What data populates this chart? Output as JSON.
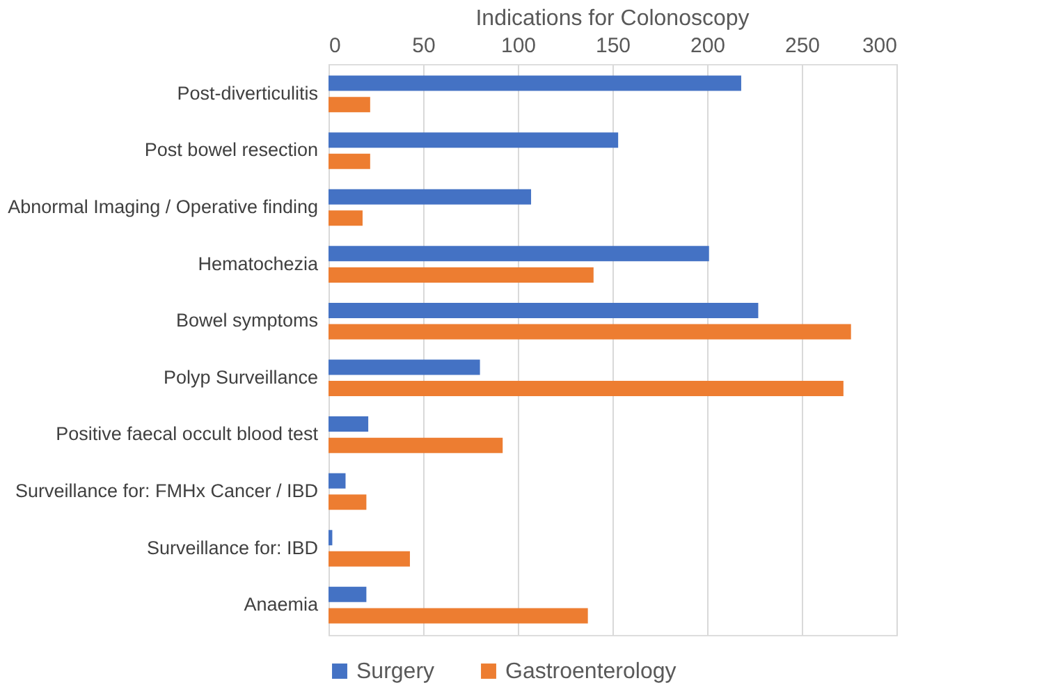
{
  "chart_data": {
    "type": "bar",
    "orientation": "horizontal",
    "title": "Indications for Colonoscopy",
    "categories": [
      "Post-diverticulitis",
      "Post bowel resection",
      "Abnormal Imaging / Operative finding",
      "Hematochezia",
      "Bowel symptoms",
      "Polyp Surveillance",
      "Positive faecal occult blood test",
      "Surveillance for: FMHx Cancer / IBD",
      "Surveillance for: IBD",
      "Anaemia"
    ],
    "series": [
      {
        "name": "Surgery",
        "color": "#4472c4",
        "values": [
          218,
          153,
          107,
          201,
          227,
          80,
          21,
          9,
          2,
          20
        ]
      },
      {
        "name": "Gastroenterology",
        "color": "#ed7d31",
        "values": [
          22,
          22,
          18,
          140,
          276,
          272,
          92,
          20,
          43,
          137
        ]
      }
    ],
    "xlim": [
      0,
      300
    ],
    "xticks": [
      0,
      50,
      100,
      150,
      200,
      250,
      300
    ],
    "grid": "x",
    "legend": "bottom"
  }
}
